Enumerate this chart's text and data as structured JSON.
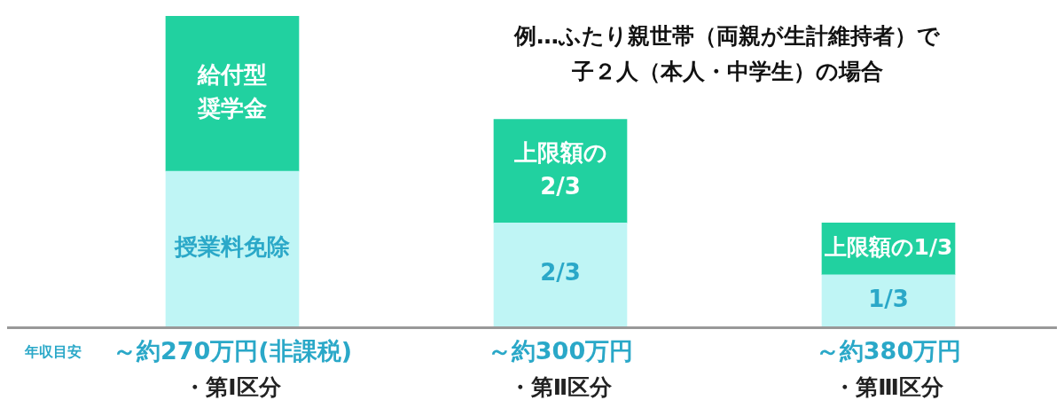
{
  "chart_data": {
    "type": "bar",
    "stacked": true,
    "title": "例…ふたり親世帯（両親が生計維持者）で子２人（本人・中学生）の場合",
    "xlabel": "年収目安",
    "categories": [
      "～約270万円(非課税)",
      "～約300万円",
      "～約380万円"
    ],
    "legend": false,
    "ylim": [
      0,
      2
    ],
    "tick_labels": "x",
    "series": [
      {
        "color": "#bff5f5",
        "values": [
          1,
          0.667,
          0.333
        ],
        "value_labels": [
          "授業料免除",
          "2/3",
          "1/3"
        ]
      },
      {
        "color": "#21d1a0",
        "values": [
          1,
          0.667,
          0.333
        ],
        "value_labels": [
          "給付型奨学金",
          "上限額の2/3",
          "上限額の1/3"
        ]
      }
    ],
    "annotations": [
      "・第Ⅰ区分",
      "・第Ⅱ区分",
      "・第Ⅲ区分"
    ]
  }
}
